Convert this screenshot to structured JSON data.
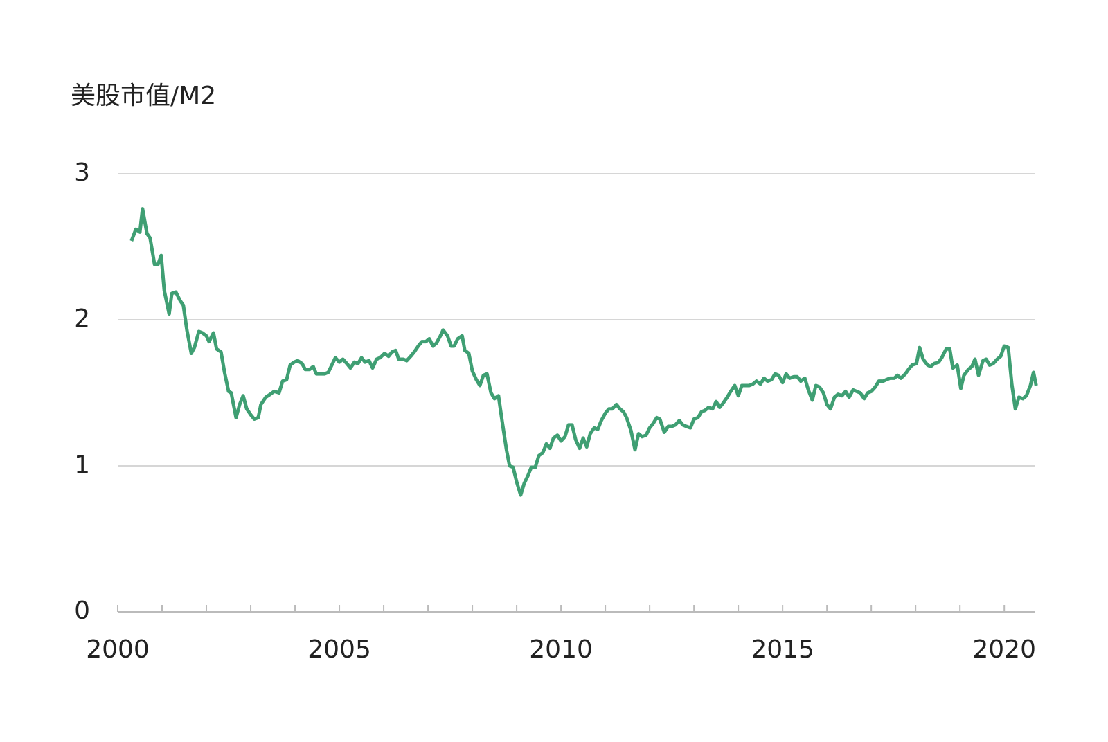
{
  "chart_data": {
    "type": "line",
    "title": "美股市值/M2",
    "x": [
      2000.31,
      2000.41,
      2000.5,
      2000.56,
      2000.66,
      2000.73,
      2000.83,
      2000.91,
      2000.98,
      2001.05,
      2001.16,
      2001.22,
      2001.31,
      2001.41,
      2001.48,
      2001.56,
      2001.66,
      2001.73,
      2001.83,
      2001.91,
      2002.0,
      2002.06,
      2002.16,
      2002.23,
      2002.33,
      2002.41,
      2002.5,
      2002.56,
      2002.67,
      2002.75,
      2002.83,
      2002.91,
      2003.0,
      2003.08,
      2003.17,
      2003.23,
      2003.34,
      2003.44,
      2003.53,
      2003.64,
      2003.72,
      2003.81,
      2003.89,
      2003.98,
      2004.06,
      2004.16,
      2004.23,
      2004.33,
      2004.41,
      2004.48,
      2004.58,
      2004.67,
      2004.75,
      2004.83,
      2004.91,
      2005.0,
      2005.08,
      2005.17,
      2005.25,
      2005.34,
      2005.42,
      2005.5,
      2005.58,
      2005.67,
      2005.75,
      2005.84,
      2005.92,
      2006.02,
      2006.11,
      2006.19,
      2006.27,
      2006.34,
      2006.44,
      2006.52,
      2006.61,
      2006.69,
      2006.78,
      2006.86,
      2006.95,
      2007.03,
      2007.11,
      2007.19,
      2007.28,
      2007.34,
      2007.44,
      2007.52,
      2007.59,
      2007.67,
      2007.77,
      2007.83,
      2007.92,
      2008.0,
      2008.09,
      2008.17,
      2008.25,
      2008.33,
      2008.42,
      2008.5,
      2008.59,
      2008.67,
      2008.77,
      2008.84,
      2008.92,
      2009.0,
      2009.09,
      2009.17,
      2009.25,
      2009.33,
      2009.42,
      2009.5,
      2009.59,
      2009.67,
      2009.75,
      2009.83,
      2009.92,
      2010.0,
      2010.09,
      2010.17,
      2010.25,
      2010.33,
      2010.42,
      2010.5,
      2010.58,
      2010.66,
      2010.75,
      2010.83,
      2010.91,
      2011.0,
      2011.08,
      2011.16,
      2011.25,
      2011.33,
      2011.41,
      2011.48,
      2011.58,
      2011.67,
      2011.75,
      2011.83,
      2011.92,
      2012.0,
      2012.08,
      2012.16,
      2012.23,
      2012.33,
      2012.42,
      2012.5,
      2012.58,
      2012.67,
      2012.75,
      2012.83,
      2012.92,
      2013.0,
      2013.09,
      2013.17,
      2013.25,
      2013.33,
      2013.42,
      2013.5,
      2013.58,
      2013.66,
      2013.75,
      2013.83,
      2013.92,
      2014.0,
      2014.08,
      2014.17,
      2014.25,
      2014.33,
      2014.41,
      2014.5,
      2014.58,
      2014.66,
      2014.75,
      2014.83,
      2014.91,
      2015.0,
      2015.08,
      2015.16,
      2015.25,
      2015.33,
      2015.41,
      2015.5,
      2015.58,
      2015.67,
      2015.75,
      2015.83,
      2015.92,
      2016.0,
      2016.08,
      2016.17,
      2016.25,
      2016.34,
      2016.42,
      2016.5,
      2016.59,
      2016.67,
      2016.75,
      2016.84,
      2016.92,
      2017.0,
      2017.09,
      2017.17,
      2017.27,
      2017.34,
      2017.42,
      2017.52,
      2017.59,
      2017.67,
      2017.77,
      2017.84,
      2017.92,
      2018.02,
      2018.09,
      2018.17,
      2018.27,
      2018.34,
      2018.42,
      2018.52,
      2018.59,
      2018.69,
      2018.77,
      2018.84,
      2018.94,
      2019.02,
      2019.09,
      2019.19,
      2019.27,
      2019.34,
      2019.42,
      2019.52,
      2019.59,
      2019.67,
      2019.75,
      2019.84,
      2019.92,
      2020.0,
      2020.09,
      2020.17,
      2020.25,
      2020.33,
      2020.42,
      2020.5,
      2020.59,
      2020.66,
      2020.72
    ],
    "series": [
      {
        "color": "#3f9f73",
        "values": [
          2.54,
          2.62,
          2.6,
          2.76,
          2.59,
          2.56,
          2.38,
          2.38,
          2.44,
          2.2,
          2.04,
          2.18,
          2.19,
          2.13,
          2.1,
          1.93,
          1.77,
          1.81,
          1.92,
          1.91,
          1.89,
          1.85,
          1.91,
          1.8,
          1.78,
          1.64,
          1.51,
          1.5,
          1.33,
          1.42,
          1.48,
          1.39,
          1.35,
          1.32,
          1.33,
          1.42,
          1.47,
          1.49,
          1.51,
          1.5,
          1.58,
          1.59,
          1.69,
          1.71,
          1.72,
          1.7,
          1.66,
          1.66,
          1.68,
          1.63,
          1.63,
          1.63,
          1.64,
          1.69,
          1.74,
          1.71,
          1.73,
          1.7,
          1.67,
          1.71,
          1.7,
          1.74,
          1.71,
          1.72,
          1.67,
          1.73,
          1.74,
          1.77,
          1.75,
          1.78,
          1.79,
          1.73,
          1.73,
          1.72,
          1.75,
          1.78,
          1.82,
          1.85,
          1.85,
          1.87,
          1.82,
          1.84,
          1.89,
          1.93,
          1.89,
          1.82,
          1.82,
          1.87,
          1.89,
          1.79,
          1.77,
          1.65,
          1.59,
          1.55,
          1.62,
          1.63,
          1.5,
          1.46,
          1.48,
          1.31,
          1.11,
          1.0,
          0.99,
          0.89,
          0.8,
          0.88,
          0.93,
          0.99,
          0.99,
          1.07,
          1.09,
          1.15,
          1.12,
          1.19,
          1.21,
          1.17,
          1.2,
          1.28,
          1.28,
          1.18,
          1.12,
          1.19,
          1.13,
          1.22,
          1.26,
          1.25,
          1.31,
          1.36,
          1.39,
          1.39,
          1.42,
          1.39,
          1.37,
          1.33,
          1.24,
          1.11,
          1.22,
          1.2,
          1.21,
          1.26,
          1.29,
          1.33,
          1.32,
          1.23,
          1.27,
          1.27,
          1.28,
          1.31,
          1.28,
          1.27,
          1.26,
          1.32,
          1.33,
          1.37,
          1.38,
          1.4,
          1.39,
          1.44,
          1.4,
          1.43,
          1.47,
          1.51,
          1.55,
          1.48,
          1.55,
          1.55,
          1.55,
          1.56,
          1.58,
          1.56,
          1.6,
          1.58,
          1.59,
          1.63,
          1.62,
          1.57,
          1.63,
          1.6,
          1.61,
          1.61,
          1.58,
          1.6,
          1.52,
          1.45,
          1.55,
          1.54,
          1.5,
          1.42,
          1.39,
          1.47,
          1.49,
          1.48,
          1.51,
          1.47,
          1.52,
          1.51,
          1.5,
          1.46,
          1.5,
          1.51,
          1.54,
          1.58,
          1.58,
          1.59,
          1.6,
          1.6,
          1.62,
          1.6,
          1.63,
          1.66,
          1.69,
          1.7,
          1.81,
          1.73,
          1.69,
          1.68,
          1.7,
          1.71,
          1.74,
          1.8,
          1.8,
          1.67,
          1.69,
          1.53,
          1.62,
          1.66,
          1.68,
          1.73,
          1.62,
          1.72,
          1.73,
          1.69,
          1.7,
          1.73,
          1.75,
          1.82,
          1.81,
          1.56,
          1.39,
          1.47,
          1.46,
          1.48,
          1.55,
          1.64,
          1.55
        ]
      }
    ],
    "xlim": [
      2000,
      2020.7
    ],
    "xticks": [
      2000,
      2005,
      2010,
      2015,
      2020
    ],
    "xminorticks": [
      2000,
      2001,
      2002,
      2003,
      2004,
      2005,
      2006,
      2007,
      2008,
      2009,
      2010,
      2011,
      2012,
      2013,
      2014,
      2015,
      2016,
      2017,
      2018,
      2019,
      2020
    ],
    "ylim": [
      0,
      3
    ],
    "yticks": [
      0,
      1,
      2,
      3
    ],
    "grid": true
  }
}
